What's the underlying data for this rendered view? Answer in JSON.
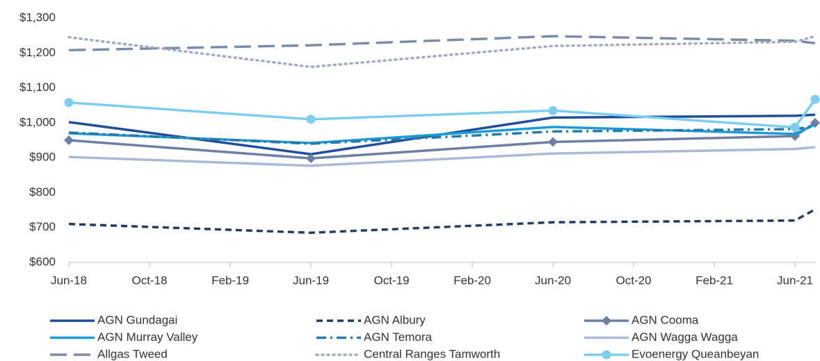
{
  "chart_data": {
    "type": "line",
    "x": [
      "2018-06",
      "2019-06",
      "2020-06",
      "2021-06",
      "2021-07"
    ],
    "xlim": [
      "2018-06",
      "2021-07"
    ],
    "xticks": [
      {
        "value": "2018-06",
        "label": "Jun-18"
      },
      {
        "value": "2018-10",
        "label": "Oct-18"
      },
      {
        "value": "2019-02",
        "label": "Feb-19"
      },
      {
        "value": "2019-06",
        "label": "Jun-19"
      },
      {
        "value": "2019-10",
        "label": "Oct-19"
      },
      {
        "value": "2020-02",
        "label": "Feb-20"
      },
      {
        "value": "2020-06",
        "label": "Jun-20"
      },
      {
        "value": "2020-10",
        "label": "Oct-20"
      },
      {
        "value": "2021-02",
        "label": "Feb-21"
      },
      {
        "value": "2021-06",
        "label": "Jun-21"
      }
    ],
    "ylim": [
      600,
      1300
    ],
    "yticks": [
      {
        "value": 600,
        "label": "$600"
      },
      {
        "value": 700,
        "label": "$700"
      },
      {
        "value": 800,
        "label": "$800"
      },
      {
        "value": 900,
        "label": "$900"
      },
      {
        "value": 1000,
        "label": "$1,000"
      },
      {
        "value": 1100,
        "label": "$1,100"
      },
      {
        "value": 1200,
        "label": "$1,200"
      },
      {
        "value": 1300,
        "label": "$1,300"
      }
    ],
    "series": [
      {
        "name": "AGN Gundagai",
        "color": "#1f4e9c",
        "dash": "solid",
        "values": [
          1002,
          910,
          1015,
          1020,
          1023
        ]
      },
      {
        "name": "AGN Albury",
        "color": "#243a5e",
        "dash": "dash",
        "values": [
          710,
          685,
          715,
          720,
          752
        ]
      },
      {
        "name": "AGN Cooma",
        "color": "#6e7fa3",
        "dash": "solid",
        "marker": "diamond",
        "values": [
          950,
          898,
          945,
          962,
          1000
        ]
      },
      {
        "name": "AGN Murray Valley",
        "color": "#1a9bd7",
        "dash": "solid",
        "values": [
          970,
          942,
          988,
          968,
          995
        ]
      },
      {
        "name": "AGN Temora",
        "color": "#2779a7",
        "dash": "dashdot",
        "values": [
          972,
          940,
          975,
          982,
          990
        ]
      },
      {
        "name": "AGN Wagga Wagga",
        "color": "#a9b8d4",
        "dash": "solid",
        "values": [
          902,
          877,
          912,
          925,
          930
        ]
      },
      {
        "name": "Allgas Tweed",
        "color": "#7d8ca6",
        "dash": "longdash",
        "values": [
          1208,
          1222,
          1248,
          1235,
          1228
        ]
      },
      {
        "name": "Central Ranges Tamworth",
        "color": "#a0a9bd",
        "dash": "dot",
        "values": [
          1245,
          1160,
          1220,
          1232,
          1248
        ]
      },
      {
        "name": "Evoenergy Queanbeyan",
        "color": "#7ccdef",
        "dash": "solid",
        "marker": "circle",
        "values": [
          1058,
          1010,
          1035,
          987,
          1067
        ]
      }
    ]
  }
}
